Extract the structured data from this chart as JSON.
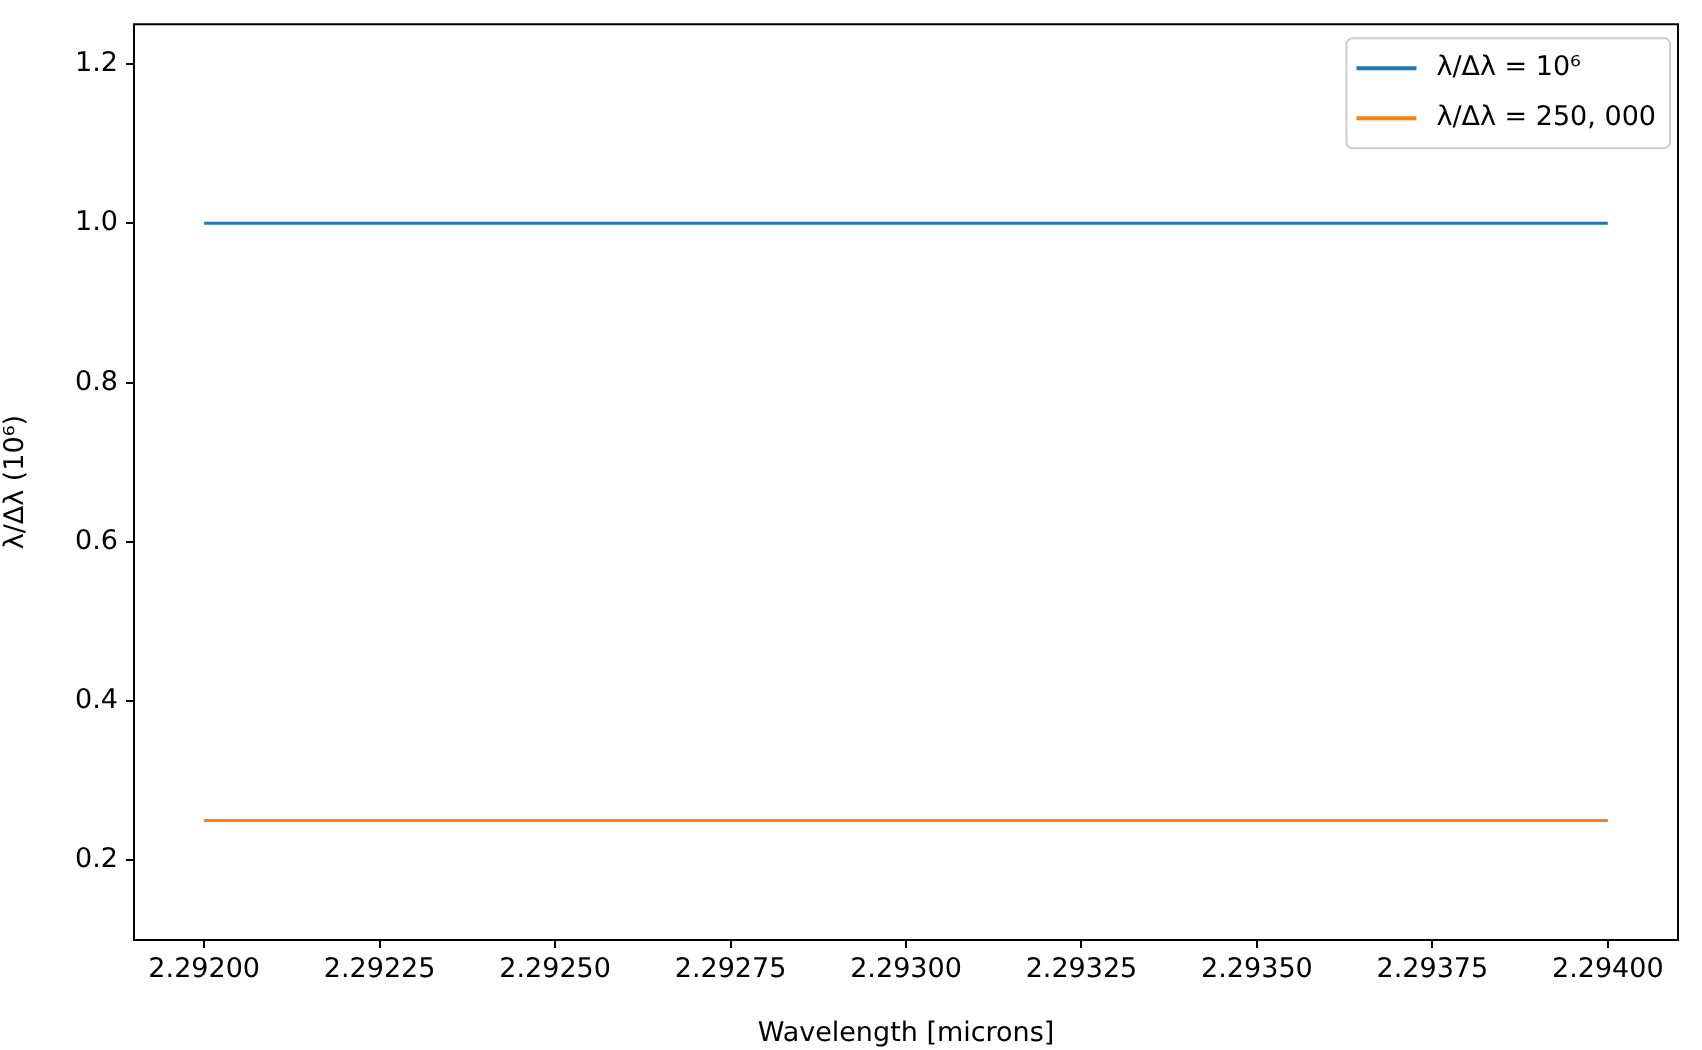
{
  "chart_data": {
    "type": "line",
    "xlabel": "Wavelength [microns]",
    "ylabel": "λ/Δλ (10⁶)",
    "x": [
      2.292,
      2.294
    ],
    "series": [
      {
        "name": "λ/Δλ = 10⁶",
        "color": "#1f77b4",
        "values": [
          1.0,
          1.0
        ]
      },
      {
        "name": "λ/Δλ = 250, 000",
        "color": "#ff7f0e",
        "values": [
          0.25,
          0.25
        ]
      }
    ],
    "xlim": [
      2.2919,
      2.2941
    ],
    "xticks": [
      {
        "value": 2.292,
        "label": "2.29200"
      },
      {
        "value": 2.29225,
        "label": "2.29225"
      },
      {
        "value": 2.2925,
        "label": "2.29250"
      },
      {
        "value": 2.29275,
        "label": "2.29275"
      },
      {
        "value": 2.293,
        "label": "2.29300"
      },
      {
        "value": 2.29325,
        "label": "2.29325"
      },
      {
        "value": 2.2935,
        "label": "2.29350"
      },
      {
        "value": 2.29375,
        "label": "2.29375"
      },
      {
        "value": 2.294,
        "label": "2.29400"
      }
    ],
    "ylim": [
      0.1,
      1.25
    ],
    "yticks": [
      0.2,
      0.4,
      0.6,
      0.8,
      {
        "value": 1,
        "label": "1.0"
      },
      1.2
    ],
    "legend": "top right"
  }
}
